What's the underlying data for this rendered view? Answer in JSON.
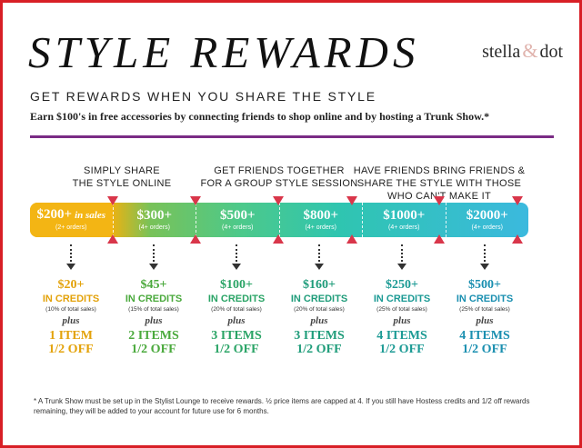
{
  "header": {
    "title": "STYLE REWARDS",
    "brand_left": "stella",
    "brand_amp": "&",
    "brand_right": "dot",
    "subtitle": "GET REWARDS WHEN YOU SHARE THE STYLE",
    "intro": "Earn $100's in free accessories by connecting friends to shop online and by hosting a Trunk Show.*"
  },
  "captions": [
    "SIMPLY SHARE\nTHE STYLE ONLINE",
    "GET FRIENDS TOGETHER\nFOR A GROUP STYLE SESSION",
    "HAVE FRIENDS BRING FRIENDS &\nSHARE THE STYLE WITH THOSE\nWHO CAN'T MAKE IT"
  ],
  "tiers": [
    {
      "amount": "$200+",
      "extra": "in sales",
      "orders": "(2+ orders)"
    },
    {
      "amount": "$300+",
      "extra": "",
      "orders": "(4+ orders)"
    },
    {
      "amount": "$500+",
      "extra": "",
      "orders": "(4+ orders)"
    },
    {
      "amount": "$800+",
      "extra": "",
      "orders": "(4+ orders)"
    },
    {
      "amount": "$1000+",
      "extra": "",
      "orders": "(4+ orders)"
    },
    {
      "amount": "$2000+",
      "extra": "",
      "orders": "(4+ orders)"
    }
  ],
  "rewards": [
    {
      "credit": "$20+",
      "credit_label": "IN CREDITS",
      "pct": "(10% of total sales)",
      "plus": "plus",
      "items_line1": "1 ITEM",
      "items_line2": "1/2 OFF",
      "accent": "#e3a20a"
    },
    {
      "credit": "$45+",
      "credit_label": "IN CREDITS",
      "pct": "(15% of total sales)",
      "plus": "plus",
      "items_line1": "2 ITEMS",
      "items_line2": "1/2 OFF",
      "accent": "#1f9c7a"
    },
    {
      "credit": "$100+",
      "credit_label": "IN CREDITS",
      "pct": "(20% of total sales)",
      "plus": "plus",
      "items_line1": "3 ITEMS",
      "items_line2": "1/2 OFF",
      "accent": "#1f9c7a"
    },
    {
      "credit": "$160+",
      "credit_label": "IN CREDITS",
      "pct": "(20% of total sales)",
      "plus": "plus",
      "items_line1": "3 ITEMS",
      "items_line2": "1/2 OFF",
      "accent": "#1f9c7a"
    },
    {
      "credit": "$250+",
      "credit_label": "IN CREDITS",
      "pct": "(25% of total sales)",
      "plus": "plus",
      "items_line1": "4 ITEMS",
      "items_line2": "1/2 OFF",
      "accent": "#1f9c7a"
    },
    {
      "credit": "$500+",
      "credit_label": "IN CREDITS",
      "pct": "(25% of total sales)",
      "plus": "plus",
      "items_line1": "4 ITEMS",
      "items_line2": "1/2 OFF",
      "accent": "#1f9c7a"
    }
  ],
  "footnote": "* A Trunk Show must be set up in the Stylist Lounge to receive rewards. ½ price items are capped at 4. If you still have Hostess credits and 1/2 off rewards remaining, they will be added to your account for future use for 6 months.",
  "colors": {
    "border": "#d81f26",
    "divider": "#7a2b85",
    "gold": "#f3b514",
    "teal": "#1f9c7a",
    "marker": "#d9364a"
  }
}
